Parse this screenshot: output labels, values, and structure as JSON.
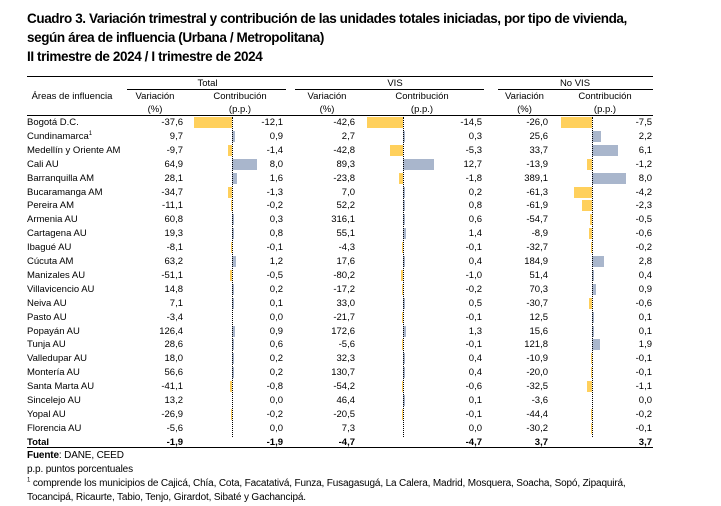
{
  "title": {
    "line1": "Cuadro 3. Variación trimestral y contribución de las unidades totales iniciadas, por tipo de vivienda,",
    "line2": "según área de influencia (Urbana / Metropolitana)",
    "line3": "II trimestre de 2024 / I trimestre de 2024"
  },
  "colors": {
    "negative_bar": "#FFD05C",
    "positive_bar": "#A9B6CC"
  },
  "headers": {
    "area": "Áreas de influencia",
    "groups": [
      "Total",
      "VIS",
      "No VIS"
    ],
    "variacion": "Variación",
    "variacion_unit": "(%)",
    "contribucion": "Contribución",
    "contribucion_unit": "(p.p.)"
  },
  "rows": [
    {
      "area": "Bogotá D.C.",
      "tv": "-37,6",
      "tc": "-12,1",
      "vv": "-42,6",
      "vc": "-14,5",
      "nv": "-26,0",
      "nc": "-7,5"
    },
    {
      "area": "Cundinamarca",
      "sup": "1",
      "tv": "9,7",
      "tc": "0,9",
      "vv": "2,7",
      "vc": "0,3",
      "nv": "25,6",
      "nc": "2,2"
    },
    {
      "area": "Medellín y Oriente AM",
      "tv": "-9,7",
      "tc": "-1,4",
      "vv": "-42,8",
      "vc": "-5,3",
      "nv": "33,7",
      "nc": "6,1"
    },
    {
      "area": "Cali AU",
      "tv": "64,9",
      "tc": "8,0",
      "vv": "89,3",
      "vc": "12,7",
      "nv": "-13,9",
      "nc": "-1,2"
    },
    {
      "area": "Barranquilla AM",
      "tv": "28,1",
      "tc": "1,6",
      "vv": "-23,8",
      "vc": "-1,8",
      "nv": "389,1",
      "nc": "8,0"
    },
    {
      "area": "Bucaramanga AM",
      "tv": "-34,7",
      "tc": "-1,3",
      "vv": "7,0",
      "vc": "0,2",
      "nv": "-61,3",
      "nc": "-4,2"
    },
    {
      "area": "Pereira  AM",
      "tv": "-11,1",
      "tc": "-0,2",
      "vv": "52,2",
      "vc": "0,8",
      "nv": "-61,9",
      "nc": "-2,3"
    },
    {
      "area": "Armenia  AU",
      "tv": "60,8",
      "tc": "0,3",
      "vv": "316,1",
      "vc": "0,6",
      "nv": "-54,7",
      "nc": "-0,5"
    },
    {
      "area": "Cartagena AU",
      "tv": "19,3",
      "tc": "0,8",
      "vv": "55,1",
      "vc": "1,4",
      "nv": "-8,9",
      "nc": "-0,6"
    },
    {
      "area": "Ibagué AU",
      "tv": "-8,1",
      "tc": "-0,1",
      "vv": "-4,3",
      "vc": "-0,1",
      "nv": "-32,7",
      "nc": "-0,2"
    },
    {
      "area": "Cúcuta AM",
      "tv": "63,2",
      "tc": "1,2",
      "vv": "17,6",
      "vc": "0,4",
      "nv": "184,9",
      "nc": "2,8"
    },
    {
      "area": "Manizales AU",
      "tv": "-51,1",
      "tc": "-0,5",
      "vv": "-80,2",
      "vc": "-1,0",
      "nv": "51,4",
      "nc": "0,4"
    },
    {
      "area": "Villavicencio AU",
      "tv": "14,8",
      "tc": "0,2",
      "vv": "-17,2",
      "vc": "-0,2",
      "nv": "70,3",
      "nc": "0,9"
    },
    {
      "area": "Neiva AU",
      "tv": "7,1",
      "tc": "0,1",
      "vv": "33,0",
      "vc": "0,5",
      "nv": "-30,7",
      "nc": "-0,6"
    },
    {
      "area": "Pasto AU",
      "tv": "-3,4",
      "tc": "0,0",
      "vv": "-21,7",
      "vc": "-0,1",
      "nv": "12,5",
      "nc": "0,1"
    },
    {
      "area": "Popayán AU",
      "tv": "126,4",
      "tc": "0,9",
      "vv": "172,6",
      "vc": "1,3",
      "nv": "15,6",
      "nc": "0,1"
    },
    {
      "area": "Tunja AU",
      "tv": "28,6",
      "tc": "0,6",
      "vv": "-5,6",
      "vc": "-0,1",
      "nv": "121,8",
      "nc": "1,9"
    },
    {
      "area": "Valledupar AU",
      "tv": "18,0",
      "tc": "0,2",
      "vv": "32,3",
      "vc": "0,4",
      "nv": "-10,9",
      "nc": "-0,1"
    },
    {
      "area": "Montería AU",
      "tv": "56,6",
      "tc": "0,2",
      "vv": "130,7",
      "vc": "0,4",
      "nv": "-20,0",
      "nc": "-0,1"
    },
    {
      "area": "Santa Marta AU",
      "tv": "-41,1",
      "tc": "-0,8",
      "vv": "-54,2",
      "vc": "-0,6",
      "nv": "-32,5",
      "nc": "-1,1"
    },
    {
      "area": "Sincelejo AU",
      "tv": "13,2",
      "tc": "0,0",
      "vv": "46,4",
      "vc": "0,1",
      "nv": "-3,6",
      "nc": "0,0"
    },
    {
      "area": "Yopal AU",
      "tv": "-26,9",
      "tc": "-0,2",
      "vv": "-20,5",
      "vc": "-0,1",
      "nv": "-44,4",
      "nc": "-0,2"
    },
    {
      "area": "Florencia AU",
      "tv": "-5,6",
      "tc": "0,0",
      "vv": "7,3",
      "vc": "0,0",
      "nv": "-30,2",
      "nc": "-0,1"
    }
  ],
  "total": {
    "area": "Total",
    "tv": "-1,9",
    "tc": "-1,9",
    "vv": "-4,7",
    "vc": "-4,7",
    "nv": "3,7",
    "nc": "3,7"
  },
  "footer": {
    "source_label": "Fuente",
    "source": ": DANE, CEED",
    "pp": "p.p. puntos porcentuales",
    "note_mark": "1",
    "note_line1": " comprende los municipios de Cajicá, Chía, Cota, Facatativá, Funza, Fusagasugá, La Calera, Madrid, Mosquera, Soacha, Sopó, Zipaquirá,",
    "note_line2": "Tocancipá, Ricaurte, Tabio, Tenjo, Girardot, Sibaté y Gachancipá."
  }
}
